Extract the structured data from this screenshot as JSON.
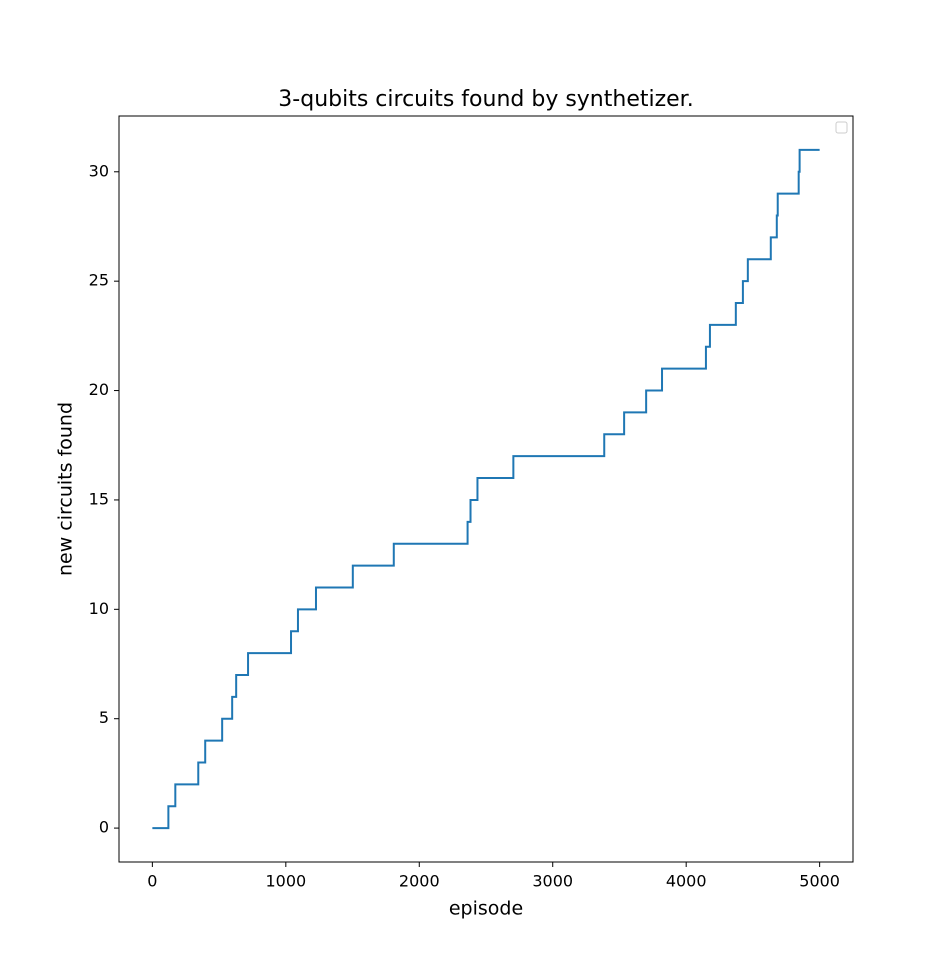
{
  "chart_data": {
    "type": "line",
    "title": "3-qubits circuits found by synthetizer.",
    "xlabel": "episode",
    "ylabel": "new circuits found",
    "x": [
      0,
      120,
      120,
      172,
      172,
      344,
      344,
      396,
      396,
      523,
      523,
      598,
      598,
      628,
      628,
      717,
      717,
      1039,
      1039,
      1091,
      1091,
      1226,
      1226,
      1502,
      1502,
      1809,
      1809,
      2362,
      2362,
      2384,
      2384,
      2436,
      2436,
      2705,
      2705,
      3386,
      3386,
      3535,
      3535,
      3700,
      3700,
      3819,
      3819,
      4148,
      4148,
      4178,
      4178,
      4372,
      4372,
      4425,
      4425,
      4462,
      4462,
      4634,
      4634,
      4679,
      4679,
      4686,
      4686,
      4843,
      4843,
      4850,
      4850,
      5000
    ],
    "series": [
      {
        "color": "#1f77b4",
        "values": [
          0,
          0,
          1,
          1,
          2,
          2,
          3,
          3,
          4,
          4,
          5,
          5,
          6,
          6,
          7,
          7,
          8,
          8,
          9,
          9,
          10,
          10,
          11,
          11,
          12,
          12,
          13,
          13,
          14,
          14,
          15,
          15,
          16,
          16,
          17,
          17,
          18,
          18,
          19,
          19,
          20,
          20,
          21,
          21,
          22,
          22,
          23,
          23,
          24,
          24,
          25,
          25,
          26,
          26,
          27,
          27,
          28,
          28,
          29,
          29,
          30,
          30,
          31,
          31
        ]
      }
    ],
    "xlim": [
      -250,
      5250
    ],
    "ylim": [
      -1.55,
      32.55
    ],
    "xticks": [
      0,
      1000,
      2000,
      3000,
      4000,
      5000
    ],
    "yticks": [
      0,
      5,
      10,
      15,
      20,
      25,
      30
    ]
  }
}
